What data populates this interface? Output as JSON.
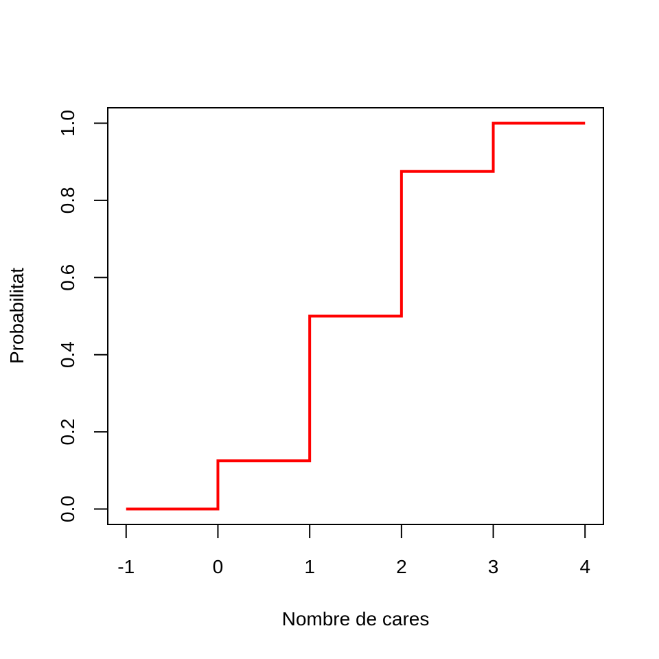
{
  "chart_data": {
    "type": "line",
    "step": "post",
    "title": "",
    "xlabel": "Nombre de cares",
    "ylabel": "Probabilitat",
    "x": [
      -1,
      0,
      1,
      2,
      3,
      4
    ],
    "y": [
      0,
      0.125,
      0.5,
      0.875,
      1,
      1
    ],
    "xlim": [
      -1.2,
      4.2
    ],
    "ylim": [
      -0.04,
      1.04
    ],
    "xticks": [
      -1,
      0,
      1,
      2,
      3,
      4
    ],
    "xtick_labels": [
      "-1",
      "0",
      "1",
      "2",
      "3",
      "4"
    ],
    "yticks": [
      0,
      0.2,
      0.4,
      0.6,
      0.8,
      1.0
    ],
    "ytick_labels": [
      "0.0",
      "0.2",
      "0.4",
      "0.6",
      "0.8",
      "1.0"
    ],
    "grid": false,
    "color": "#ff0000"
  }
}
